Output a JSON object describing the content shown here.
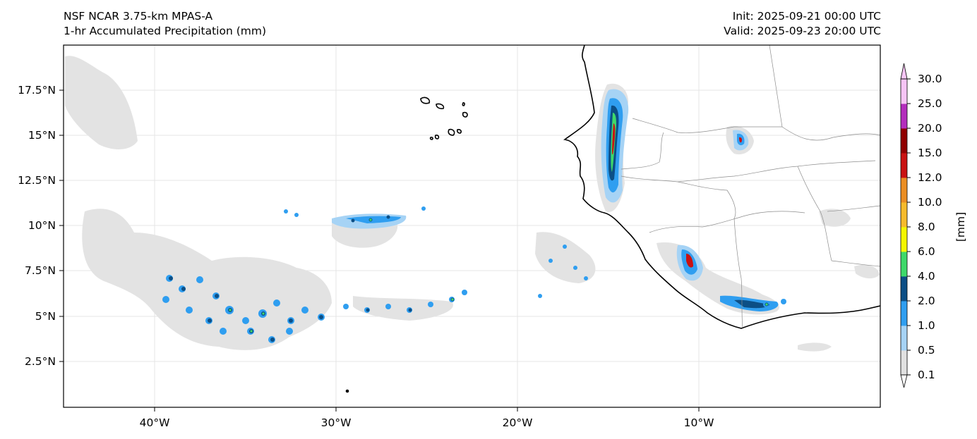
{
  "header": {
    "model": "NSF NCAR 3.75-km MPAS-A",
    "field": "1-hr Accumulated Precipitation (mm)",
    "init": "Init: 2025-09-21 00:00 UTC",
    "valid": "Valid: 2025-09-23 20:00 UTC"
  },
  "axes": {
    "x_ticks": [
      "40°W",
      "30°W",
      "20°W",
      "10°W"
    ],
    "y_ticks": [
      "17.5°N",
      "15°N",
      "12.5°N",
      "10°N",
      "7.5°N",
      "5°N",
      "2.5°N"
    ]
  },
  "colorbar": {
    "unit_label": "[mm]",
    "levels": [
      "0.1",
      "0.5",
      "1.0",
      "2.0",
      "4.0",
      "6.0",
      "8.0",
      "10.0",
      "12.0",
      "15.0",
      "20.0",
      "25.0",
      "30.0"
    ],
    "colors": [
      "#e1e1e1",
      "#a6d3f5",
      "#2f9ef0",
      "#0c4f86",
      "#3fd96a",
      "#f4f800",
      "#f6bb2c",
      "#eb8e23",
      "#c91212",
      "#900000",
      "#b42dbd",
      "#f6c5f5"
    ]
  }
}
